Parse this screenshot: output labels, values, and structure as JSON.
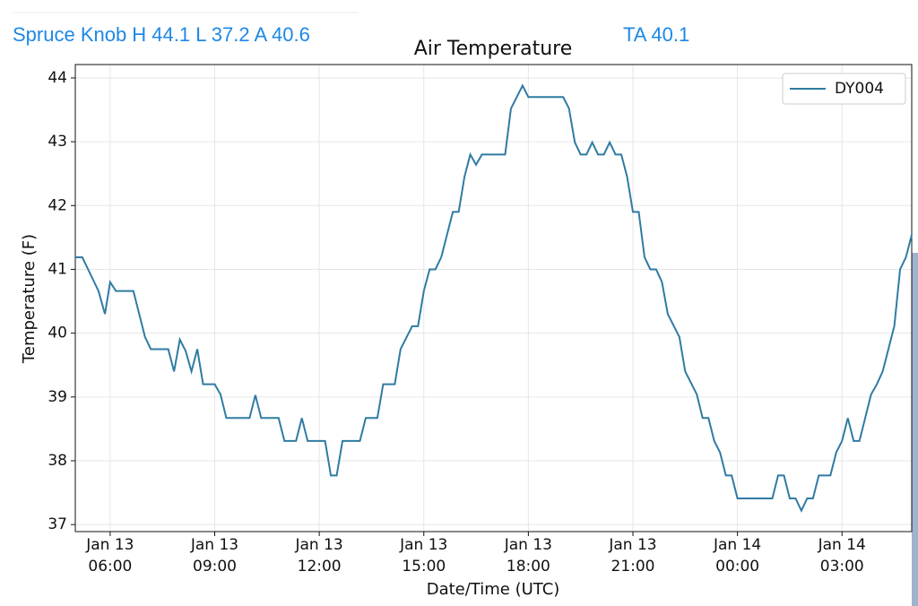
{
  "header": {
    "station": "Spruce Knob H 44.1 L 37.2 A 40.6",
    "average": "TA 40.1"
  },
  "chart_data": {
    "type": "line",
    "title": "Air Temperature",
    "xlabel": "Date/Time (UTC)",
    "ylabel": "Temperature (F)",
    "grid": true,
    "legend": "upper right",
    "xlim": [
      "Jan 13 05:00",
      "Jan 14 05:00"
    ],
    "xticks": [
      {
        "value": "Jan 13 06:00",
        "label": "Jan 13\n06:00"
      },
      {
        "value": "Jan 13 09:00",
        "label": "Jan 13\n09:00"
      },
      {
        "value": "Jan 13 12:00",
        "label": "Jan 13\n12:00"
      },
      {
        "value": "Jan 13 15:00",
        "label": "Jan 13\n15:00"
      },
      {
        "value": "Jan 13 18:00",
        "label": "Jan 13\n18:00"
      },
      {
        "value": "Jan 13 21:00",
        "label": "Jan 13\n21:00"
      },
      {
        "value": "Jan 14 00:00",
        "label": "Jan 14\n00:00"
      },
      {
        "value": "Jan 14 03:00",
        "label": "Jan 14\n03:00"
      }
    ],
    "ylim": [
      36.89,
      44.21
    ],
    "yticks": [
      37,
      38,
      39,
      40,
      41,
      42,
      43,
      44
    ],
    "x": [
      "Jan 13 05:00",
      "Jan 13 05:12",
      "Jan 13 05:40",
      "Jan 13 05:51",
      "Jan 13 06:00",
      "Jan 13 06:10",
      "Jan 13 06:40",
      "Jan 13 07:00",
      "Jan 13 07:10",
      "Jan 13 07:40",
      "Jan 13 07:50",
      "Jan 13 08:00",
      "Jan 13 08:10",
      "Jan 13 08:20",
      "Jan 13 08:30",
      "Jan 13 08:40",
      "Jan 13 09:00",
      "Jan 13 09:10",
      "Jan 13 09:20",
      "Jan 13 10:00",
      "Jan 13 10:10",
      "Jan 13 10:20",
      "Jan 13 10:50",
      "Jan 13 11:00",
      "Jan 13 11:20",
      "Jan 13 11:30",
      "Jan 13 11:40",
      "Jan 13 12:10",
      "Jan 13 12:20",
      "Jan 13 12:30",
      "Jan 13 12:40",
      "Jan 13 13:10",
      "Jan 13 13:20",
      "Jan 13 13:40",
      "Jan 13 13:50",
      "Jan 13 14:10",
      "Jan 13 14:20",
      "Jan 13 14:40",
      "Jan 13 14:50",
      "Jan 13 15:00",
      "Jan 13 15:10",
      "Jan 13 15:20",
      "Jan 13 15:30",
      "Jan 13 15:50",
      "Jan 13 16:00",
      "Jan 13 16:10",
      "Jan 13 16:20",
      "Jan 13 16:30",
      "Jan 13 16:40",
      "Jan 13 17:20",
      "Jan 13 17:30",
      "Jan 13 17:50",
      "Jan 13 18:00",
      "Jan 13 19:00",
      "Jan 13 19:10",
      "Jan 13 19:20",
      "Jan 13 19:30",
      "Jan 13 19:40",
      "Jan 13 19:50",
      "Jan 13 20:00",
      "Jan 13 20:10",
      "Jan 13 20:20",
      "Jan 13 20:30",
      "Jan 13 20:40",
      "Jan 13 20:50",
      "Jan 13 21:00",
      "Jan 13 21:10",
      "Jan 13 21:20",
      "Jan 13 21:30",
      "Jan 13 21:40",
      "Jan 13 21:50",
      "Jan 13 22:00",
      "Jan 13 22:20",
      "Jan 13 22:30",
      "Jan 13 22:50",
      "Jan 13 23:00",
      "Jan 13 23:10",
      "Jan 13 23:20",
      "Jan 13 23:30",
      "Jan 13 23:40",
      "Jan 13 23:50",
      "Jan 14 00:00",
      "Jan 14 01:00",
      "Jan 14 01:10",
      "Jan 14 01:20",
      "Jan 14 01:30",
      "Jan 14 01:40",
      "Jan 14 01:50",
      "Jan 14 02:00",
      "Jan 14 02:10",
      "Jan 14 02:20",
      "Jan 14 02:40",
      "Jan 14 02:50",
      "Jan 14 03:00",
      "Jan 14 03:10",
      "Jan 14 03:20",
      "Jan 14 03:30",
      "Jan 14 03:50",
      "Jan 14 04:00",
      "Jan 14 04:10",
      "Jan 14 04:30",
      "Jan 14 04:40",
      "Jan 14 04:50",
      "Jan 14 05:00"
    ],
    "series": [
      {
        "name": "DY004",
        "color": "#2f7ba3",
        "values": [
          41.19,
          41.19,
          40.66,
          40.3,
          40.8,
          40.66,
          40.66,
          39.94,
          39.75,
          39.75,
          39.4,
          39.9,
          39.72,
          39.4,
          39.75,
          39.2,
          39.2,
          39.04,
          38.67,
          38.67,
          39.03,
          38.67,
          38.67,
          38.31,
          38.31,
          38.67,
          38.31,
          38.31,
          37.77,
          37.77,
          38.31,
          38.31,
          38.67,
          38.67,
          39.2,
          39.2,
          39.75,
          40.11,
          40.11,
          40.66,
          41.0,
          41.0,
          41.19,
          41.9,
          41.9,
          42.45,
          42.8,
          42.64,
          42.8,
          42.8,
          43.52,
          43.88,
          43.7,
          43.7,
          43.52,
          42.99,
          42.8,
          42.8,
          42.99,
          42.8,
          42.8,
          42.99,
          42.8,
          42.8,
          42.45,
          41.9,
          41.9,
          41.19,
          41.0,
          41.0,
          40.8,
          40.3,
          39.94,
          39.4,
          39.04,
          38.67,
          38.67,
          38.31,
          38.13,
          37.77,
          37.77,
          37.41,
          37.41,
          37.77,
          37.77,
          37.41,
          37.41,
          37.22,
          37.41,
          37.41,
          37.77,
          37.77,
          38.13,
          38.31,
          38.67,
          38.31,
          38.31,
          39.04,
          39.2,
          39.4,
          40.11,
          41.0,
          41.19,
          41.54
        ]
      }
    ]
  }
}
